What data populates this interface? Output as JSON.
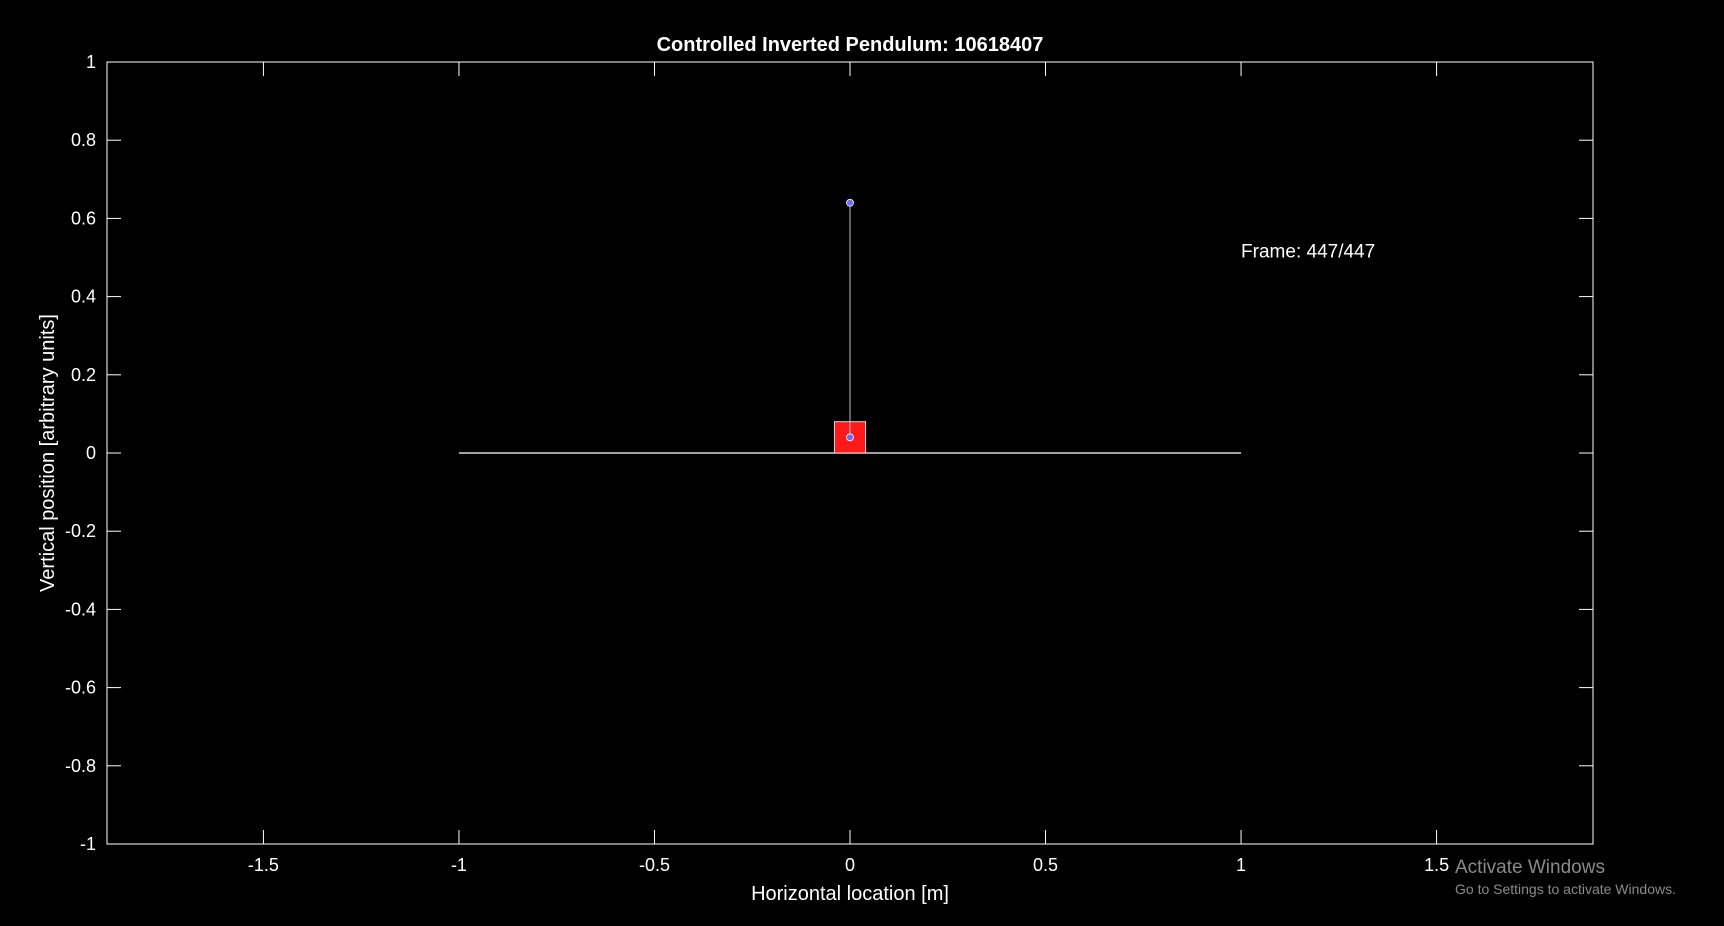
{
  "chart_data": {
    "type": "scatter",
    "title": "Controlled Inverted Pendulum: 10618407",
    "xlabel": "Horizontal location [m]",
    "ylabel": "Vertical position [arbitrary units]",
    "xlim": [
      -1.9,
      1.9
    ],
    "ylim": [
      -1,
      1
    ],
    "xticks": [
      -1.5,
      -1,
      -0.5,
      0,
      0.5,
      1,
      1.5
    ],
    "xtick_labels": [
      "-1.5",
      "-1",
      "-0.5",
      "0",
      "0.5",
      "1",
      "1.5"
    ],
    "yticks": [
      -1,
      -0.8,
      -0.6,
      -0.4,
      -0.2,
      0,
      0.2,
      0.4,
      0.6,
      0.8,
      1
    ],
    "ytick_labels": [
      "-1",
      "-0.8",
      "-0.6",
      "-0.4",
      "-0.2",
      "0",
      "0.2",
      "0.4",
      "0.6",
      "0.8",
      "1"
    ],
    "grid": false,
    "background_color": "#000000",
    "axis_color": "#ffffff",
    "track": {
      "x": [
        -1,
        1
      ],
      "y": 0,
      "color": "#ffffff"
    },
    "cart": {
      "x_center": 0,
      "x_min": -0.04,
      "x_max": 0.04,
      "y_min": 0,
      "y_max": 0.08,
      "color": "#ff1a1a"
    },
    "pendulum": {
      "pivot": {
        "x": 0,
        "y": 0.04
      },
      "bob": {
        "x": 0,
        "y": 0.64
      },
      "rod_color": "#c0c0c0",
      "point_color": "#6a6aff"
    },
    "annotation": {
      "text": "Frame: 447/447",
      "x": 1,
      "y": 0.5
    }
  },
  "overlay": {
    "activate_title": "Activate Windows",
    "activate_subtitle": "Go to Settings to activate Windows."
  }
}
